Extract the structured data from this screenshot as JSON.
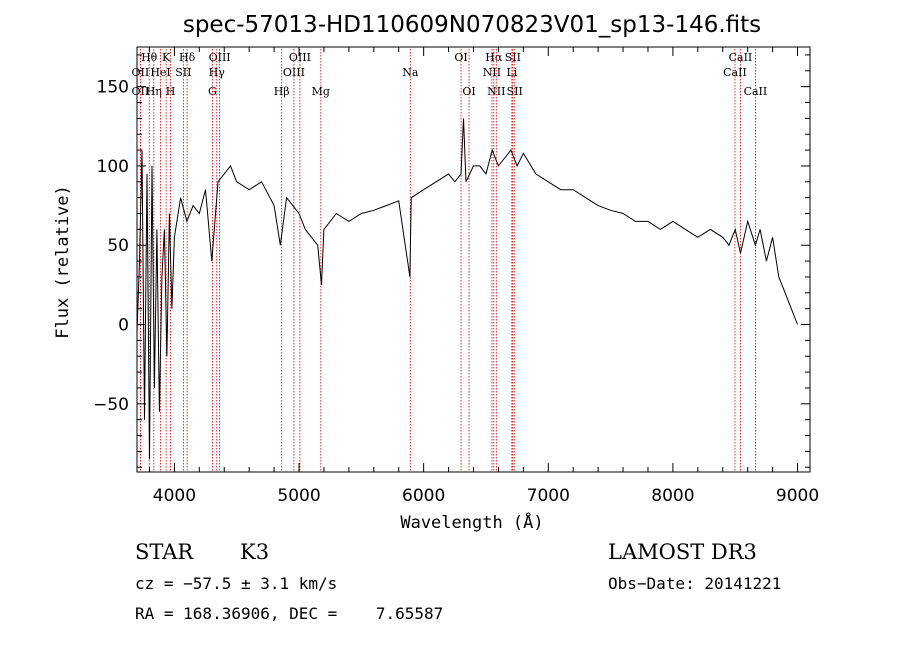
{
  "chart_data": {
    "type": "line",
    "title": "spec-57013-HD110609N070823V01_sp13-146.fits",
    "xlabel": "Wavelength (Å)",
    "ylabel": "Flux (relative)",
    "xlim": [
      3700,
      9100
    ],
    "ylim": [
      -93,
      175
    ],
    "xticks": [
      4000,
      5000,
      6000,
      7000,
      8000,
      9000
    ],
    "xtick_labels": [
      "4000",
      "5000",
      "6000",
      "7000",
      "8000",
      "9000"
    ],
    "yticks": [
      -50,
      0,
      50,
      100,
      150
    ],
    "ytick_labels": [
      "−50",
      "0",
      "50",
      "100",
      "150"
    ],
    "grid": false,
    "series": [
      {
        "x": [
          3700,
          3720,
          3740,
          3760,
          3780,
          3800,
          3820,
          3840,
          3860,
          3880,
          3900,
          3920,
          3940,
          3960,
          3980,
          4000,
          4050,
          4100,
          4150,
          4200,
          4250,
          4300,
          4350,
          4400,
          4450,
          4500,
          4600,
          4700,
          4800,
          4850,
          4900,
          4950,
          5000,
          5050,
          5100,
          5150,
          5180,
          5200,
          5300,
          5400,
          5500,
          5600,
          5700,
          5800,
          5890,
          5900,
          6000,
          6100,
          6200,
          6250,
          6300,
          6320,
          6340,
          6400,
          6450,
          6500,
          6550,
          6600,
          6650,
          6700,
          6750,
          6800,
          6900,
          7000,
          7100,
          7200,
          7300,
          7400,
          7500,
          7600,
          7700,
          7800,
          7900,
          8000,
          8100,
          8200,
          8300,
          8400,
          8450,
          8500,
          8542,
          8600,
          8662,
          8700,
          8750,
          8800,
          8850,
          8900,
          8950,
          9000
        ],
        "values": [
          -5,
          40,
          110,
          -60,
          95,
          -85,
          100,
          -40,
          60,
          -55,
          30,
          60,
          -20,
          70,
          10,
          55,
          80,
          65,
          75,
          70,
          85,
          40,
          90,
          95,
          100,
          90,
          85,
          90,
          75,
          50,
          80,
          75,
          70,
          60,
          55,
          50,
          25,
          60,
          70,
          65,
          70,
          72,
          75,
          78,
          30,
          80,
          85,
          90,
          95,
          90,
          95,
          130,
          90,
          100,
          100,
          95,
          110,
          100,
          105,
          110,
          100,
          108,
          95,
          90,
          85,
          85,
          80,
          75,
          72,
          70,
          65,
          65,
          60,
          65,
          60,
          55,
          60,
          55,
          50,
          60,
          45,
          65,
          50,
          60,
          40,
          55,
          30,
          20,
          10,
          0
        ]
      }
    ],
    "lines": [
      {
        "label": "Hθ",
        "x": 3798,
        "row": 1
      },
      {
        "label": "OII",
        "x": 3727,
        "row": 2
      },
      {
        "label": "OII",
        "x": 3727,
        "row": 3
      },
      {
        "label": "Hη",
        "x": 3835,
        "row": 3
      },
      {
        "label": "HeI",
        "x": 3889,
        "row": 2
      },
      {
        "label": "K",
        "x": 3934,
        "row": 1
      },
      {
        "label": "SII",
        "x": 4072,
        "row": 2
      },
      {
        "label": "H",
        "x": 3969,
        "row": 3
      },
      {
        "label": "Hδ",
        "x": 4102,
        "row": 1
      },
      {
        "label": "OIII",
        "x": 4363,
        "row": 1
      },
      {
        "label": "Hγ",
        "x": 4340,
        "row": 2
      },
      {
        "label": "G",
        "x": 4305,
        "row": 3
      },
      {
        "label": "OIII",
        "x": 5007,
        "row": 1
      },
      {
        "label": "OIII",
        "x": 4959,
        "row": 2
      },
      {
        "label": "Hβ",
        "x": 4861,
        "row": 3
      },
      {
        "label": "Mg",
        "x": 5175,
        "row": 3
      },
      {
        "label": "Na",
        "x": 5893,
        "row": 2
      },
      {
        "label": "OI",
        "x": 6300,
        "row": 1
      },
      {
        "label": "OI",
        "x": 6364,
        "row": 3
      },
      {
        "label": "Hα",
        "x": 6563,
        "row": 1
      },
      {
        "label": "SII",
        "x": 6716,
        "row": 1
      },
      {
        "label": "NII",
        "x": 6548,
        "row": 2
      },
      {
        "label": "Li",
        "x": 6708,
        "row": 2
      },
      {
        "label": "NII",
        "x": 6583,
        "row": 3
      },
      {
        "label": "SII",
        "x": 6731,
        "row": 3
      },
      {
        "label": "CaII",
        "x": 8542,
        "row": 1
      },
      {
        "label": "CaII",
        "x": 8498,
        "row": 2
      },
      {
        "label": "CaII",
        "x": 8662,
        "row": 3
      }
    ],
    "line_color": "#cc0000"
  },
  "info": {
    "class_label": "STAR",
    "subclass": "K3",
    "survey": "LAMOST DR3",
    "cz": "cz = −57.5 ± 3.1 km/s",
    "obs_date": "Obs−Date: 20141221",
    "coords": "RA = 168.36906, DEC =    7.65587"
  }
}
